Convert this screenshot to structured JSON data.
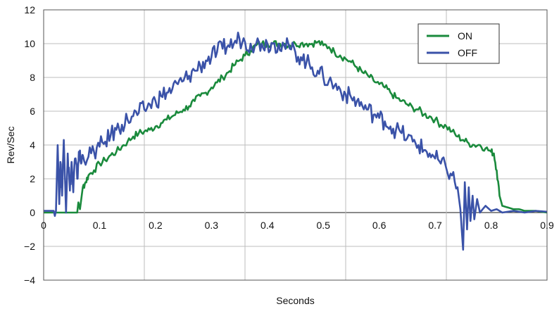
{
  "chart_data": {
    "type": "line",
    "title": "",
    "xlabel": "Seconds",
    "ylabel": "Rev/Sec",
    "xlim": [
      0,
      0.9
    ],
    "ylim": [
      -4,
      12
    ],
    "grid": true,
    "legend_position": "top-right",
    "x_ticks": [
      "0",
      "0.1",
      "0.2",
      "0.3",
      "0.4",
      "0.5",
      "0.6",
      "0.7",
      "0.8",
      "0.9"
    ],
    "x_tick_values": [
      0,
      0.1,
      0.2,
      0.3,
      0.4,
      0.5,
      0.6,
      0.7,
      0.8,
      0.9
    ],
    "y_ticks": [
      "−4",
      "−2",
      "0",
      "2",
      "4",
      "6",
      "8",
      "10",
      "12"
    ],
    "y_tick_values": [
      -4,
      -2,
      0,
      2,
      4,
      6,
      8,
      10,
      12
    ],
    "series": [
      {
        "name": "ON",
        "color": "#1a8a3c",
        "points": [
          [
            0,
            0
          ],
          [
            0.06,
            0
          ],
          [
            0.062,
            0.6
          ],
          [
            0.065,
            0.2
          ],
          [
            0.07,
            1.5
          ],
          [
            0.075,
            1.8
          ],
          [
            0.08,
            2.2
          ],
          [
            0.09,
            2.5
          ],
          [
            0.1,
            2.9
          ],
          [
            0.11,
            3.1
          ],
          [
            0.12,
            3.4
          ],
          [
            0.13,
            3.6
          ],
          [
            0.14,
            3.9
          ],
          [
            0.15,
            4.2
          ],
          [
            0.16,
            4.5
          ],
          [
            0.17,
            4.7
          ],
          [
            0.18,
            4.8
          ],
          [
            0.19,
            4.9
          ],
          [
            0.2,
            5.1
          ],
          [
            0.21,
            5.3
          ],
          [
            0.22,
            5.5
          ],
          [
            0.23,
            5.7
          ],
          [
            0.24,
            5.9
          ],
          [
            0.25,
            6.1
          ],
          [
            0.26,
            6.3
          ],
          [
            0.27,
            6.6
          ],
          [
            0.28,
            6.9
          ],
          [
            0.29,
            7.1
          ],
          [
            0.3,
            7.4
          ],
          [
            0.31,
            7.7
          ],
          [
            0.32,
            8.0
          ],
          [
            0.33,
            8.3
          ],
          [
            0.34,
            8.7
          ],
          [
            0.35,
            9.0
          ],
          [
            0.36,
            9.3
          ],
          [
            0.37,
            9.6
          ],
          [
            0.38,
            9.9
          ],
          [
            0.39,
            10.0
          ],
          [
            0.4,
            10.0
          ],
          [
            0.41,
            10.0
          ],
          [
            0.42,
            10.0
          ],
          [
            0.43,
            10.0
          ],
          [
            0.44,
            9.9
          ],
          [
            0.45,
            10.0
          ],
          [
            0.46,
            10.0
          ],
          [
            0.47,
            10.0
          ],
          [
            0.48,
            10.0
          ],
          [
            0.49,
            10.1
          ],
          [
            0.5,
            9.9
          ],
          [
            0.51,
            9.8
          ],
          [
            0.52,
            9.5
          ],
          [
            0.53,
            9.3
          ],
          [
            0.54,
            9.1
          ],
          [
            0.55,
            8.9
          ],
          [
            0.56,
            8.6
          ],
          [
            0.57,
            8.3
          ],
          [
            0.58,
            8.1
          ],
          [
            0.59,
            7.8
          ],
          [
            0.6,
            7.6
          ],
          [
            0.61,
            7.4
          ],
          [
            0.62,
            7.1
          ],
          [
            0.63,
            6.8
          ],
          [
            0.64,
            6.6
          ],
          [
            0.65,
            6.4
          ],
          [
            0.66,
            6.2
          ],
          [
            0.67,
            6.1
          ],
          [
            0.68,
            5.8
          ],
          [
            0.69,
            5.7
          ],
          [
            0.7,
            5.5
          ],
          [
            0.71,
            5.2
          ],
          [
            0.72,
            5.1
          ],
          [
            0.73,
            4.8
          ],
          [
            0.74,
            4.5
          ],
          [
            0.75,
            4.3
          ],
          [
            0.76,
            4.1
          ],
          [
            0.77,
            4.0
          ],
          [
            0.78,
            4.0
          ],
          [
            0.79,
            3.8
          ],
          [
            0.8,
            3.6
          ],
          [
            0.805,
            3.5
          ],
          [
            0.81,
            2.5
          ],
          [
            0.815,
            1.0
          ],
          [
            0.82,
            0.4
          ],
          [
            0.83,
            0.3
          ],
          [
            0.84,
            0.2
          ],
          [
            0.85,
            0.2
          ],
          [
            0.86,
            0.1
          ],
          [
            0.87,
            0.1
          ],
          [
            0.88,
            0.1
          ],
          [
            0.9,
            0.0
          ]
        ]
      },
      {
        "name": "OFF",
        "color": "#3a52a8",
        "points": [
          [
            0,
            0.1
          ],
          [
            0.018,
            0.1
          ],
          [
            0.02,
            -0.2
          ],
          [
            0.022,
            0.1
          ],
          [
            0.025,
            4.0
          ],
          [
            0.028,
            0.5
          ],
          [
            0.03,
            3.0
          ],
          [
            0.033,
            1.0
          ],
          [
            0.036,
            4.3
          ],
          [
            0.04,
            0.0
          ],
          [
            0.043,
            3.5
          ],
          [
            0.047,
            1.3
          ],
          [
            0.05,
            3.0
          ],
          [
            0.053,
            1.2
          ],
          [
            0.056,
            3.2
          ],
          [
            0.06,
            2.0
          ],
          [
            0.063,
            3.6
          ],
          [
            0.067,
            2.9
          ],
          [
            0.07,
            3.4
          ],
          [
            0.08,
            3.3
          ],
          [
            0.09,
            3.6
          ],
          [
            0.1,
            3.9
          ],
          [
            0.11,
            4.2
          ],
          [
            0.12,
            4.6
          ],
          [
            0.13,
            4.9
          ],
          [
            0.14,
            5.2
          ],
          [
            0.15,
            5.5
          ],
          [
            0.16,
            5.7
          ],
          [
            0.17,
            5.9
          ],
          [
            0.18,
            6.1
          ],
          [
            0.19,
            6.4
          ],
          [
            0.2,
            6.6
          ],
          [
            0.21,
            6.9
          ],
          [
            0.22,
            7.1
          ],
          [
            0.23,
            7.3
          ],
          [
            0.24,
            7.6
          ],
          [
            0.25,
            7.8
          ],
          [
            0.26,
            8.1
          ],
          [
            0.27,
            8.4
          ],
          [
            0.28,
            8.7
          ],
          [
            0.29,
            9.0
          ],
          [
            0.3,
            9.2
          ],
          [
            0.31,
            9.5
          ],
          [
            0.32,
            9.7
          ],
          [
            0.33,
            9.9
          ],
          [
            0.34,
            10.0
          ],
          [
            0.35,
            10.3
          ],
          [
            0.36,
            10.1
          ],
          [
            0.37,
            10.0
          ],
          [
            0.38,
            10.0
          ],
          [
            0.39,
            10.0
          ],
          [
            0.4,
            10.0
          ],
          [
            0.41,
            10.0
          ],
          [
            0.42,
            10.0
          ],
          [
            0.43,
            9.9
          ],
          [
            0.44,
            9.7
          ],
          [
            0.45,
            9.5
          ],
          [
            0.46,
            9.2
          ],
          [
            0.47,
            8.9
          ],
          [
            0.48,
            8.6
          ],
          [
            0.49,
            8.4
          ],
          [
            0.5,
            8.0
          ],
          [
            0.51,
            7.8
          ],
          [
            0.52,
            7.5
          ],
          [
            0.53,
            7.3
          ],
          [
            0.54,
            7.0
          ],
          [
            0.55,
            6.8
          ],
          [
            0.56,
            6.6
          ],
          [
            0.57,
            6.3
          ],
          [
            0.58,
            6.1
          ],
          [
            0.59,
            5.8
          ],
          [
            0.6,
            5.6
          ],
          [
            0.61,
            5.4
          ],
          [
            0.62,
            5.1
          ],
          [
            0.63,
            4.9
          ],
          [
            0.64,
            4.7
          ],
          [
            0.65,
            4.4
          ],
          [
            0.66,
            4.2
          ],
          [
            0.67,
            4.0
          ],
          [
            0.68,
            3.7
          ],
          [
            0.69,
            3.5
          ],
          [
            0.7,
            3.2
          ],
          [
            0.71,
            2.9
          ],
          [
            0.72,
            2.6
          ],
          [
            0.73,
            2.2
          ],
          [
            0.74,
            1.5
          ],
          [
            0.745,
            0.2
          ],
          [
            0.75,
            -2.2
          ],
          [
            0.753,
            1.8
          ],
          [
            0.757,
            -1.0
          ],
          [
            0.76,
            1.5
          ],
          [
            0.763,
            -0.5
          ],
          [
            0.767,
            1.0
          ],
          [
            0.77,
            -0.4
          ],
          [
            0.775,
            0.8
          ],
          [
            0.78,
            0.0
          ],
          [
            0.79,
            0.4
          ],
          [
            0.8,
            0.1
          ],
          [
            0.81,
            0.2
          ],
          [
            0.82,
            0.0
          ],
          [
            0.84,
            0.1
          ],
          [
            0.86,
            0.0
          ],
          [
            0.88,
            0.1
          ],
          [
            0.9,
            0.05
          ]
        ]
      }
    ]
  }
}
